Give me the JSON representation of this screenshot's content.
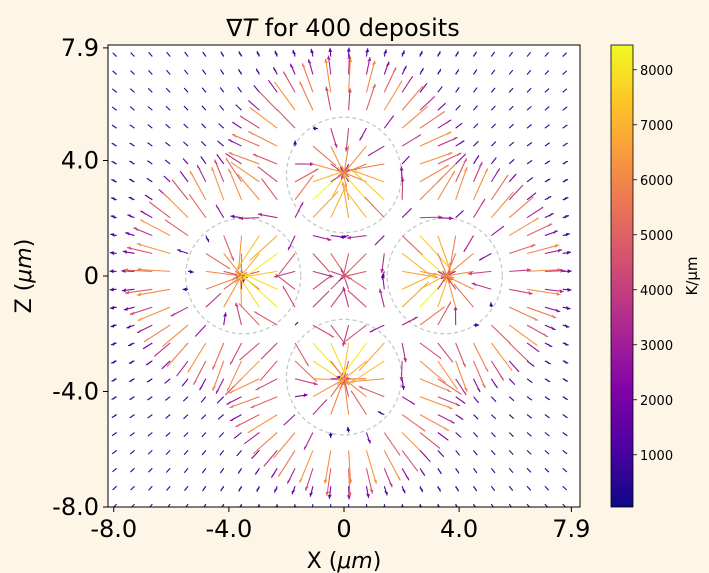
{
  "chart_data": {
    "type": "quiver",
    "title_prefix": "∇",
    "title_symbol": "T",
    "title_suffix": " for 400 deposits",
    "xlabel_prefix": "X (",
    "xlabel_symbol": "μm",
    "xlabel_suffix": ")",
    "ylabel_prefix": "Z (",
    "ylabel_symbol": "μm",
    "ylabel_suffix": ")",
    "xlim": [
      -8.2,
      8.2
    ],
    "ylim": [
      -8.0,
      8.0
    ],
    "x_ticks": [
      {
        "value": -8.0,
        "label": "-8.0"
      },
      {
        "value": -4.0,
        "label": "-4.0"
      },
      {
        "value": 0,
        "label": "0"
      },
      {
        "value": 4.0,
        "label": "4.0"
      },
      {
        "value": 7.9,
        "label": "7.9"
      }
    ],
    "y_ticks": [
      {
        "value": -8.0,
        "label": "-8.0"
      },
      {
        "value": -4.0,
        "label": "-4.0"
      },
      {
        "value": 0,
        "label": "0"
      },
      {
        "value": 4.0,
        "label": "4.0"
      },
      {
        "value": 7.9,
        "label": "7.9"
      }
    ],
    "colorbar": {
      "label": "K/μm",
      "min": 50,
      "max": 8450,
      "ticks": [
        {
          "value": 1000,
          "label": "1000"
        },
        {
          "value": 2000,
          "label": "2000"
        },
        {
          "value": 3000,
          "label": "3000"
        },
        {
          "value": 4000,
          "label": "4000"
        },
        {
          "value": 5000,
          "label": "5000"
        },
        {
          "value": 6000,
          "label": "6000"
        },
        {
          "value": 7000,
          "label": "7000"
        },
        {
          "value": 8000,
          "label": "8000"
        }
      ],
      "colormap": "plasma"
    },
    "deposits": [
      {
        "cx": 0,
        "cz": 3.5,
        "r": 2.0
      },
      {
        "cx": -3.5,
        "cz": 0,
        "r": 2.0
      },
      {
        "cx": 3.5,
        "cz": 0,
        "r": 2.0
      },
      {
        "cx": 0,
        "cz": -3.5,
        "r": 2.0
      }
    ],
    "grid": false
  }
}
